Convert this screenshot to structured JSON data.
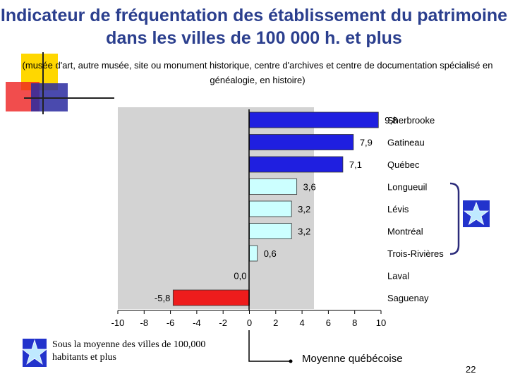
{
  "header": {
    "title": "Indicateur de fréquentation des établissement du patrimoine dans les villes de 100 000 h. et plus",
    "subtitle": "(musée d'art, autre musée, site ou monument historique, centre d'archives et centre de documentation spécialisé en généalogie, en histoire)"
  },
  "chart_data": {
    "type": "bar",
    "orientation": "horizontal",
    "categories": [
      "Sherbrooke",
      "Gatineau",
      "Québec",
      "Longueuil",
      "Lévis",
      "Montréal",
      "Trois-Rivières",
      "Laval",
      "Saguenay"
    ],
    "values": [
      9.8,
      7.9,
      7.1,
      3.6,
      3.2,
      3.2,
      0.6,
      0.0,
      -5.8
    ],
    "value_labels": [
      "9,8",
      "7,9",
      "7,1",
      "3,6",
      "3,2",
      "3,2",
      "0,6",
      "0,0",
      "-5,8"
    ],
    "x_ticks": [
      "-10",
      "-8",
      "-6",
      "-4",
      "-2",
      "0",
      "2",
      "4",
      "6",
      "8",
      "10"
    ],
    "xlim": [
      -10,
      10
    ],
    "grid": false,
    "colors": {
      "high": "#1f1fe0",
      "middle": "#ccffff",
      "low": "#ee1c1c",
      "plot_background": "#d3d3d3"
    },
    "bar_groups": [
      "high",
      "high",
      "high",
      "middle",
      "middle",
      "middle",
      "middle",
      "middle",
      "low"
    ]
  },
  "annotations": {
    "footnote": "Sous la moyenne des villes de 100,000 habitants et plus",
    "mean_label": "Moyenne québécoise",
    "page_number": "22",
    "bracket_icon": "star-icon"
  }
}
